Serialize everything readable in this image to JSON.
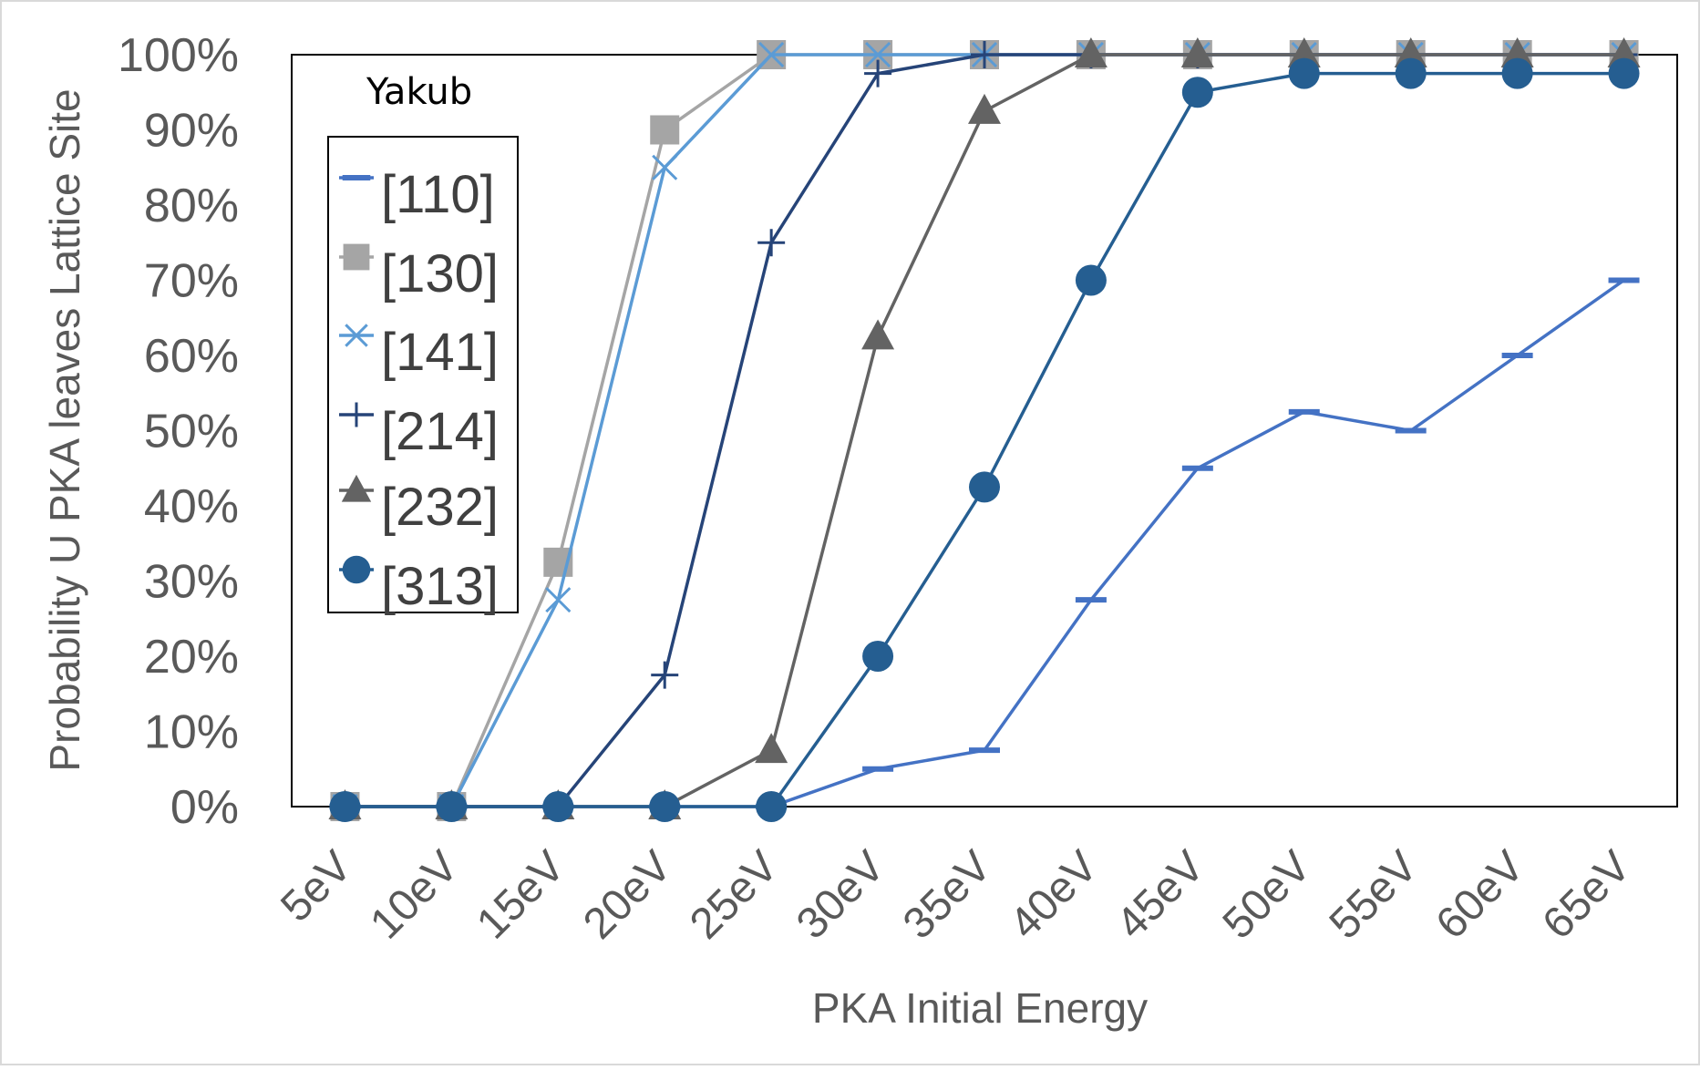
{
  "chart_data": {
    "type": "line",
    "title": "Yakub",
    "xlabel": "PKA Initial Energy",
    "ylabel": "Probability U PKA leaves Lattice Site",
    "categories": [
      "5eV",
      "10eV",
      "15eV",
      "20eV",
      "25eV",
      "30eV",
      "35eV",
      "40eV",
      "45eV",
      "50eV",
      "55eV",
      "60eV",
      "65eV"
    ],
    "ylim": [
      0,
      100
    ],
    "yticks": [
      "0%",
      "10%",
      "20%",
      "30%",
      "40%",
      "50%",
      "60%",
      "70%",
      "80%",
      "90%",
      "100%"
    ],
    "grid": false,
    "legend_position": "top-left",
    "series": [
      {
        "name": "[110]",
        "marker": "dash",
        "color": "#4472C4",
        "values": [
          0,
          0,
          0,
          0,
          0,
          5,
          7.5,
          27.5,
          45,
          52.5,
          50,
          60,
          70
        ]
      },
      {
        "name": "[130]",
        "marker": "square",
        "color": "#A5A5A5",
        "values": [
          0,
          0,
          32.5,
          90,
          100,
          100,
          100,
          100,
          100,
          100,
          100,
          100,
          100
        ]
      },
      {
        "name": "[141]",
        "marker": "x",
        "color": "#5B9BD5",
        "values": [
          0,
          0,
          27.5,
          85,
          100,
          100,
          100,
          100,
          100,
          100,
          100,
          100,
          100
        ]
      },
      {
        "name": "[214]",
        "marker": "plus",
        "color": "#264478",
        "values": [
          0,
          0,
          0,
          17.5,
          75,
          97.5,
          100,
          100,
          100,
          100,
          100,
          100,
          100
        ]
      },
      {
        "name": "[232]",
        "marker": "triangle",
        "color": "#636363",
        "values": [
          0,
          0,
          0,
          0,
          7.5,
          62.5,
          92.5,
          100,
          100,
          100,
          100,
          100,
          100
        ]
      },
      {
        "name": "[313]",
        "marker": "circle",
        "color": "#255E91",
        "values": [
          0,
          0,
          0,
          0,
          0,
          20,
          42.5,
          70,
          95,
          97.5,
          97.5,
          97.5,
          97.5
        ]
      }
    ]
  }
}
